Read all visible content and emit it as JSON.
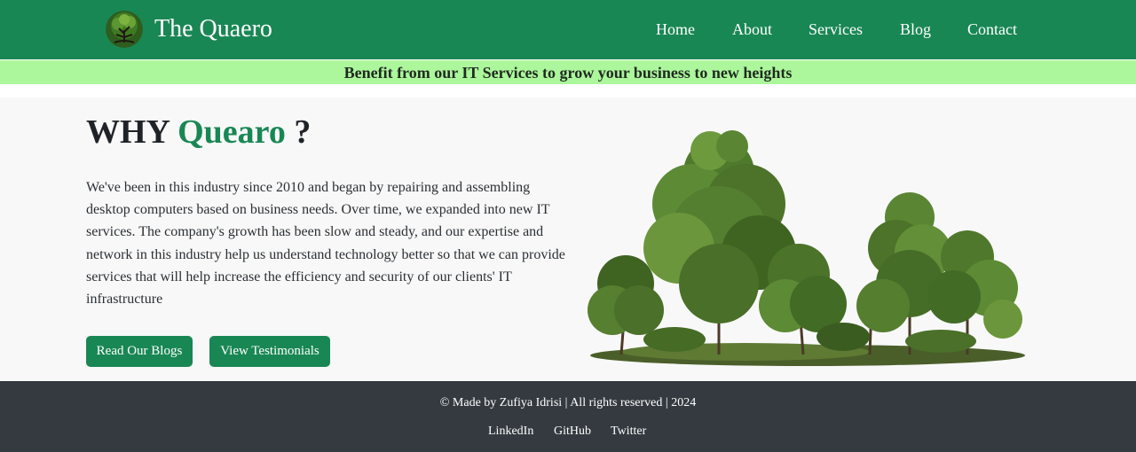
{
  "brand": {
    "name": "The Quaero",
    "logo_icon": "tree-logo-icon"
  },
  "nav": {
    "items": [
      {
        "label": "Home"
      },
      {
        "label": "About"
      },
      {
        "label": "Services"
      },
      {
        "label": "Blog"
      },
      {
        "label": "Contact"
      }
    ]
  },
  "announcement": {
    "text": "Benefit from our IT Services to grow your business to new heights"
  },
  "hero": {
    "heading_why": "WHY",
    "heading_brand": "Quearo",
    "heading_q": "?",
    "paragraph": "We've been in this industry since 2010 and began by repairing and assembling desktop computers based on business needs. Over time, we expanded into new IT services. The company's growth has been slow and steady, and our expertise and network in this industry help us understand technology better so that we can provide services that will help increase the efficiency and security of our clients' IT infrastructure",
    "button_blogs": "Read Our Blogs",
    "button_testimonials": "View Testimonials",
    "image_icon": "trees-illustration"
  },
  "footer": {
    "copyright": "© Made by Zufiya Idrisi | All rights reserved | 2024",
    "links": [
      {
        "label": "LinkedIn"
      },
      {
        "label": "GitHub"
      },
      {
        "label": "Twitter"
      }
    ]
  },
  "colors": {
    "primary": "#198754",
    "announce_bg": "#acf79c",
    "footer_bg": "#343a40",
    "hero_bg": "#f8f8f8"
  }
}
